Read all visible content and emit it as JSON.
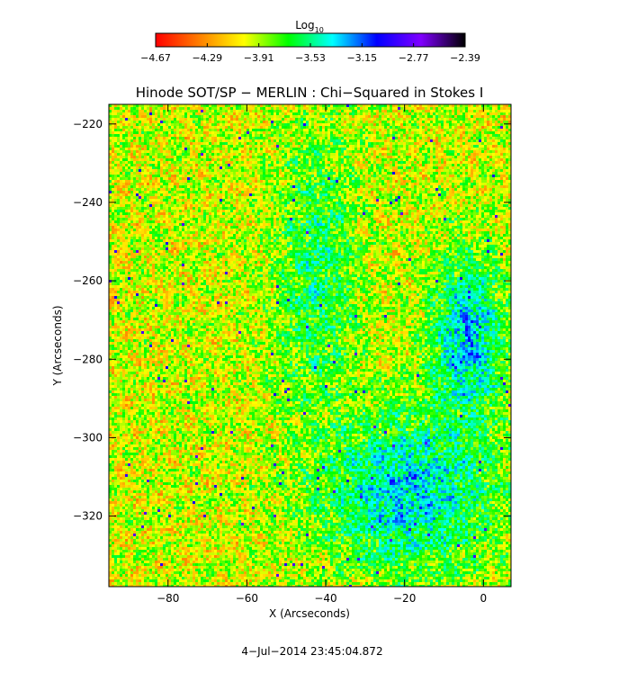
{
  "colorbar": {
    "title_main": "Log",
    "title_sub": "10",
    "ticks": [
      "−4.67",
      "−4.29",
      "−3.91",
      "−3.53",
      "−3.15",
      "−2.77",
      "−2.39"
    ],
    "range": [
      -4.67,
      -2.39
    ],
    "colors": [
      "#ff0000",
      "#ff8000",
      "#ffff00",
      "#00ff00",
      "#00ffff",
      "#0000ff",
      "#8000ff",
      "#000000"
    ]
  },
  "chart_data": {
    "type": "heatmap",
    "title": "Hinode SOT/SP − MERLIN : Chi−Squared in Stokes I",
    "xlabel": "X (Arcseconds)",
    "ylabel": "Y (Arcseconds)",
    "xlim": [
      -95,
      7
    ],
    "ylim": [
      -338,
      -215
    ],
    "xticks": [
      {
        "value": -80,
        "label": "−80"
      },
      {
        "value": -60,
        "label": "−60"
      },
      {
        "value": -40,
        "label": "−40"
      },
      {
        "value": -20,
        "label": "−20"
      },
      {
        "value": 0,
        "label": "0"
      }
    ],
    "yticks": [
      {
        "value": -220,
        "label": "−220"
      },
      {
        "value": -240,
        "label": "−240"
      },
      {
        "value": -260,
        "label": "−260"
      },
      {
        "value": -280,
        "label": "−280"
      },
      {
        "value": -300,
        "label": "−300"
      },
      {
        "value": -320,
        "label": "−320"
      }
    ],
    "value_range": [
      -4.67,
      -2.39
    ],
    "description_regions": [
      {
        "x": [
          -55,
          -30
        ],
        "y": [
          -300,
          -215
        ],
        "level": -3.6
      },
      {
        "x": [
          -45,
          7
        ],
        "y": [
          -338,
          -290
        ],
        "level": -3.35
      },
      {
        "x": [
          -15,
          7
        ],
        "y": [
          -300,
          -250
        ],
        "level": -3.3
      }
    ]
  },
  "footer": {
    "timestamp": "4−Jul−2014 23:45:04.872"
  }
}
